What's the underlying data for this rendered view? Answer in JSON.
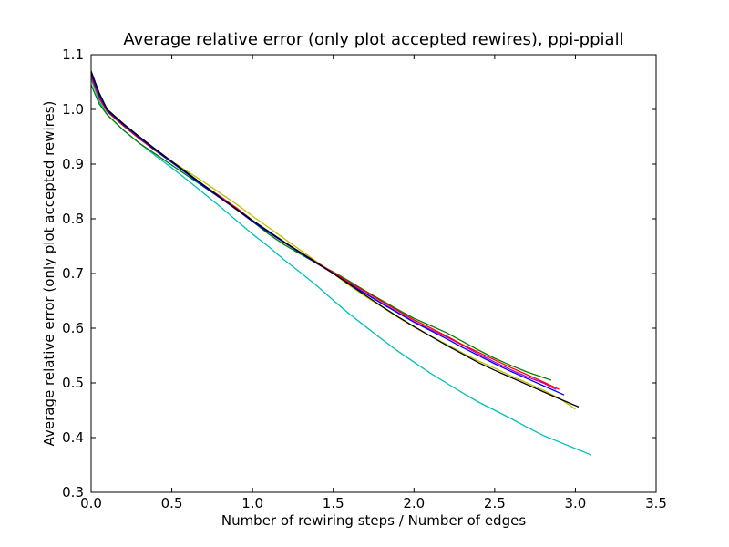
{
  "chart_data": {
    "type": "line",
    "title": "Average relative error (only plot accepted rewires), ppi-ppiall",
    "xlabel": "Number of rewiring steps / Number of edges",
    "ylabel": "Average relative error (only plot accepted rewires)",
    "xlim": [
      0.0,
      3.5
    ],
    "ylim": [
      0.3,
      1.1
    ],
    "xticks": [
      "0.0",
      "0.5",
      "1.0",
      "1.5",
      "2.0",
      "2.5",
      "3.0",
      "3.5"
    ],
    "yticks": [
      "0.3",
      "0.4",
      "0.5",
      "0.6",
      "0.7",
      "0.8",
      "0.9",
      "1.0",
      "1.1"
    ],
    "grid": false,
    "legend": "none",
    "series": [
      {
        "color": "#00bfbf",
        "x": [
          0.0,
          0.05,
          0.1,
          0.2,
          0.3,
          0.4,
          0.5,
          0.6,
          0.7,
          0.8,
          0.9,
          1.0,
          1.1,
          1.2,
          1.3,
          1.4,
          1.5,
          1.6,
          1.7,
          1.8,
          1.9,
          2.0,
          2.1,
          2.2,
          2.3,
          2.4,
          2.5,
          2.6,
          2.7,
          2.8,
          2.9,
          3.0,
          3.1
        ],
        "y": [
          1.055,
          1.015,
          0.99,
          0.962,
          0.938,
          0.915,
          0.893,
          0.87,
          0.846,
          0.822,
          0.797,
          0.772,
          0.749,
          0.724,
          0.701,
          0.677,
          0.651,
          0.626,
          0.603,
          0.58,
          0.558,
          0.538,
          0.518,
          0.5,
          0.482,
          0.465,
          0.45,
          0.435,
          0.419,
          0.404,
          0.392,
          0.38,
          0.368
        ]
      },
      {
        "color": "#008000",
        "x": [
          0.0,
          0.05,
          0.1,
          0.2,
          0.3,
          0.4,
          0.5,
          0.6,
          0.7,
          0.8,
          0.9,
          1.0,
          1.1,
          1.2,
          1.3,
          1.4,
          1.5,
          1.6,
          1.7,
          1.8,
          1.9,
          2.0,
          2.1,
          2.2,
          2.3,
          2.4,
          2.5,
          2.6,
          2.7,
          2.85
        ],
        "y": [
          1.045,
          1.01,
          0.99,
          0.962,
          0.938,
          0.918,
          0.898,
          0.878,
          0.858,
          0.838,
          0.818,
          0.795,
          0.772,
          0.752,
          0.735,
          0.718,
          0.703,
          0.686,
          0.668,
          0.651,
          0.634,
          0.618,
          0.605,
          0.592,
          0.576,
          0.56,
          0.545,
          0.532,
          0.52,
          0.505
        ]
      },
      {
        "color": "#bfbf00",
        "x": [
          0.0,
          0.05,
          0.1,
          0.2,
          0.3,
          0.4,
          0.5,
          0.6,
          0.7,
          0.8,
          0.9,
          1.0,
          1.1,
          1.2,
          1.3,
          1.4,
          1.5,
          1.6,
          1.7,
          1.8,
          1.9,
          2.0,
          2.1,
          2.2,
          2.3,
          2.4,
          2.5,
          2.6,
          2.7,
          2.8,
          2.9,
          3.0
        ],
        "y": [
          1.06,
          1.02,
          0.995,
          0.97,
          0.946,
          0.924,
          0.905,
          0.886,
          0.867,
          0.847,
          0.827,
          0.805,
          0.784,
          0.763,
          0.742,
          0.721,
          0.7,
          0.678,
          0.658,
          0.639,
          0.62,
          0.602,
          0.586,
          0.571,
          0.555,
          0.54,
          0.527,
          0.513,
          0.5,
          0.487,
          0.472,
          0.452
        ]
      },
      {
        "color": "#bf00bf",
        "x": [
          0.0,
          0.05,
          0.1,
          0.2,
          0.3,
          0.4,
          0.5,
          0.6,
          0.7,
          0.8,
          0.9,
          1.0,
          1.1,
          1.2,
          1.3,
          1.4,
          1.5,
          1.6,
          1.7,
          1.8,
          1.9,
          2.0,
          2.1,
          2.2,
          2.3,
          2.4,
          2.5,
          2.6,
          2.7,
          2.8,
          2.88
        ],
        "y": [
          1.065,
          1.025,
          0.998,
          0.972,
          0.948,
          0.925,
          0.903,
          0.882,
          0.861,
          0.841,
          0.82,
          0.797,
          0.776,
          0.756,
          0.738,
          0.719,
          0.701,
          0.682,
          0.664,
          0.646,
          0.629,
          0.612,
          0.598,
          0.584,
          0.569,
          0.553,
          0.538,
          0.524,
          0.511,
          0.5,
          0.488
        ]
      },
      {
        "color": "#ff0000",
        "x": [
          0.0,
          0.05,
          0.1,
          0.2,
          0.3,
          0.4,
          0.5,
          0.6,
          0.7,
          0.8,
          0.9,
          1.0,
          1.1,
          1.2,
          1.3,
          1.4,
          1.5,
          1.6,
          1.7,
          1.8,
          1.9,
          2.0,
          2.1,
          2.2,
          2.3,
          2.4,
          2.5,
          2.6,
          2.7,
          2.8,
          2.9
        ],
        "y": [
          1.06,
          1.02,
          0.996,
          0.97,
          0.946,
          0.924,
          0.903,
          0.882,
          0.861,
          0.84,
          0.82,
          0.797,
          0.776,
          0.756,
          0.738,
          0.72,
          0.702,
          0.684,
          0.667,
          0.649,
          0.632,
          0.615,
          0.601,
          0.586,
          0.57,
          0.556,
          0.542,
          0.528,
          0.515,
          0.502,
          0.488
        ]
      },
      {
        "color": "#0000ff",
        "x": [
          0.0,
          0.05,
          0.1,
          0.2,
          0.3,
          0.4,
          0.5,
          0.6,
          0.7,
          0.8,
          0.9,
          1.0,
          1.1,
          1.2,
          1.3,
          1.4,
          1.5,
          1.6,
          1.7,
          1.8,
          1.9,
          2.0,
          2.1,
          2.2,
          2.3,
          2.4,
          2.5,
          2.6,
          2.7,
          2.8,
          2.93
        ],
        "y": [
          1.065,
          1.025,
          0.998,
          0.972,
          0.948,
          0.925,
          0.903,
          0.881,
          0.859,
          0.838,
          0.817,
          0.795,
          0.775,
          0.756,
          0.737,
          0.718,
          0.7,
          0.681,
          0.663,
          0.645,
          0.628,
          0.611,
          0.596,
          0.581,
          0.565,
          0.55,
          0.535,
          0.521,
          0.508,
          0.495,
          0.478
        ]
      },
      {
        "color": "#000000",
        "x": [
          0.0,
          0.05,
          0.1,
          0.2,
          0.3,
          0.4,
          0.5,
          0.6,
          0.7,
          0.8,
          0.9,
          1.0,
          1.1,
          1.2,
          1.3,
          1.4,
          1.5,
          1.6,
          1.7,
          1.8,
          1.9,
          2.0,
          2.1,
          2.2,
          2.3,
          2.4,
          2.5,
          2.6,
          2.7,
          2.8,
          2.9,
          3.02
        ],
        "y": [
          1.07,
          1.03,
          1.0,
          0.974,
          0.95,
          0.927,
          0.905,
          0.883,
          0.861,
          0.839,
          0.818,
          0.797,
          0.777,
          0.757,
          0.738,
          0.719,
          0.7,
          0.68,
          0.66,
          0.64,
          0.621,
          0.603,
          0.586,
          0.569,
          0.553,
          0.537,
          0.523,
          0.51,
          0.497,
          0.484,
          0.471,
          0.456
        ]
      }
    ]
  }
}
